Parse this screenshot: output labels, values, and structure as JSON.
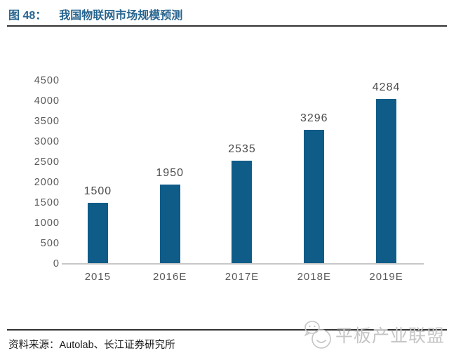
{
  "header": {
    "figure_label": "图 48：",
    "figure_title": "我国物联网市场规模预测"
  },
  "chart_data": {
    "type": "bar",
    "title": "我国物联网市场规模预测",
    "categories": [
      "2015",
      "2016E",
      "2017E",
      "2018E",
      "2019E"
    ],
    "values": [
      1500,
      1950,
      2535,
      3296,
      4284
    ],
    "data_labels": [
      "1500",
      "1950",
      "2535",
      "3296",
      "4284"
    ],
    "xlabel": "",
    "ylabel": "",
    "ylim": [
      0,
      4500
    ],
    "ytick_step": 500,
    "yticks": [
      "0",
      "500",
      "1000",
      "1500",
      "2000",
      "2500",
      "3000",
      "3500",
      "4000",
      "4500"
    ],
    "grid": false,
    "legend": "none",
    "bar_color": "#0F5C89"
  },
  "footer": {
    "source_text": "资料来源：Autolab、长江证券研究所"
  },
  "watermark": {
    "icon": "wechat-icon",
    "text": "平板产业联盟"
  },
  "colors": {
    "title_text": "#27648F",
    "bar_fill": "#0F5C89",
    "axis_text": "#595959",
    "value_label_text": "#4C4C4C",
    "rule": "#333333",
    "axis_line": "#C8C8C8",
    "watermark_text": "#C5C5C5"
  }
}
